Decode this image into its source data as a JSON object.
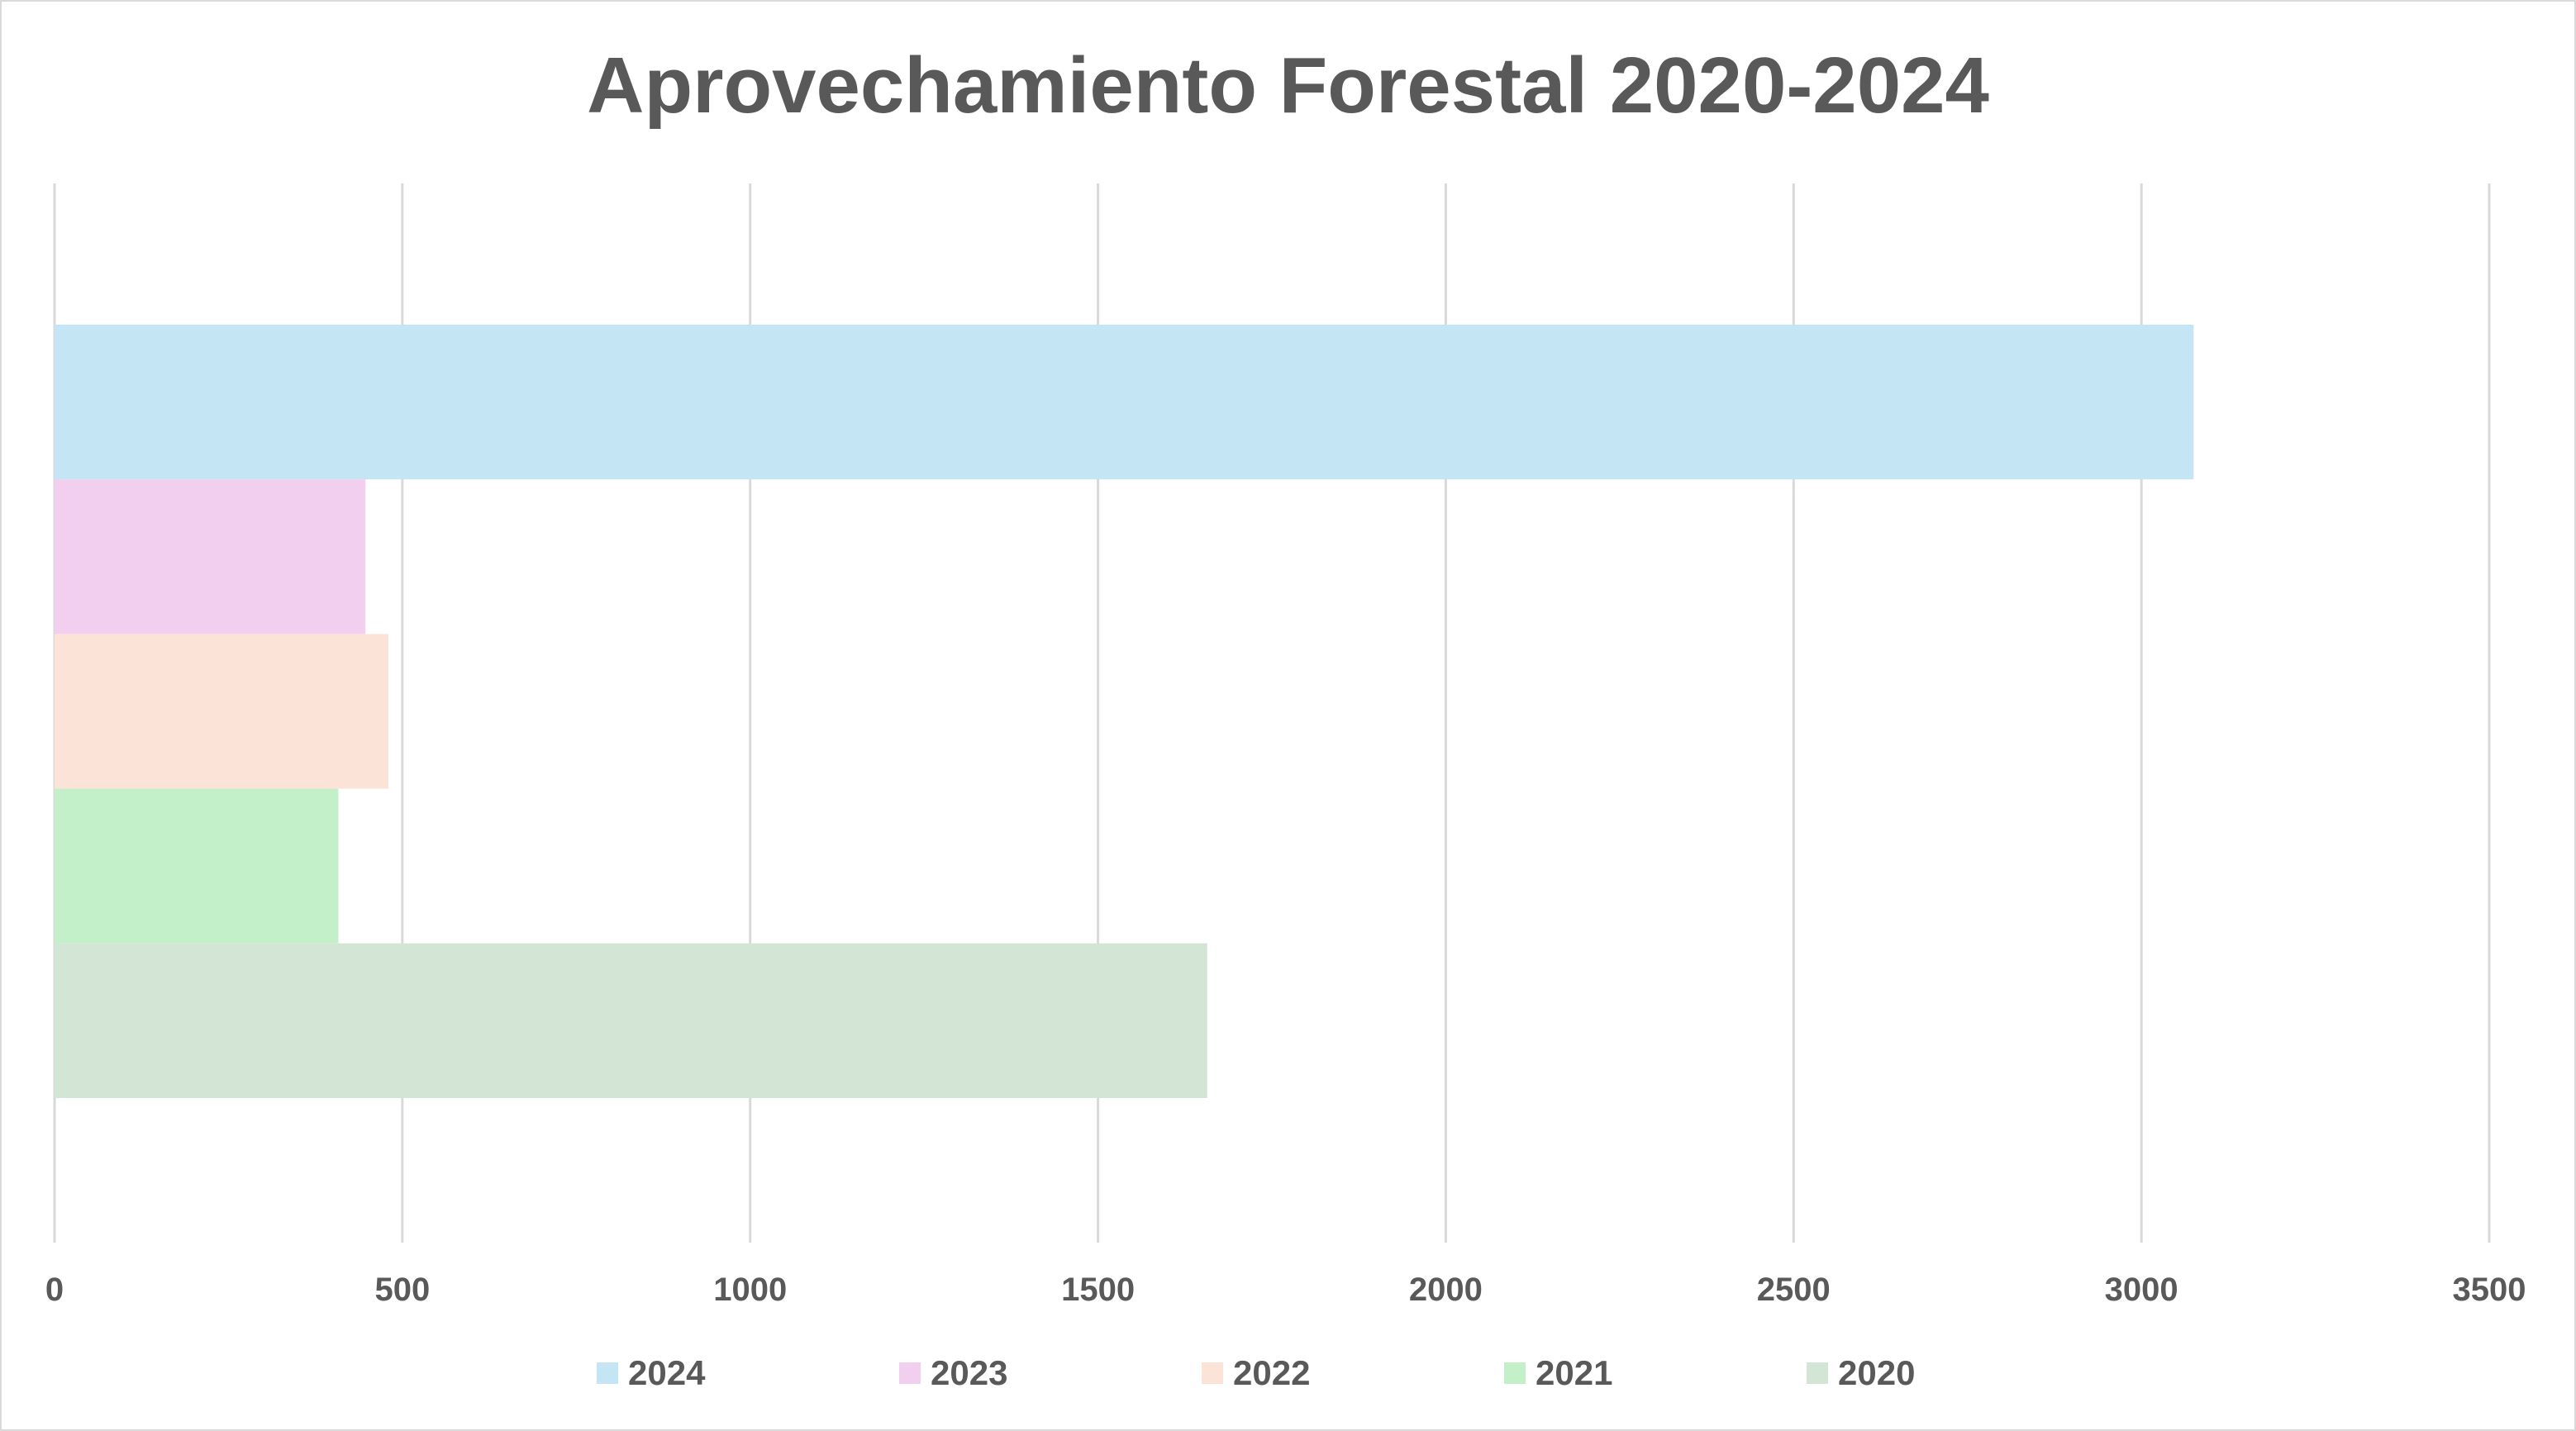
{
  "chart_data": {
    "type": "bar",
    "orientation": "horizontal",
    "title": "Aprovechamiento Forestal 2020-2024",
    "xlabel": "",
    "ylabel": "",
    "xlim": [
      0,
      3500
    ],
    "x_ticks": [
      "0",
      "500",
      "1000",
      "1500",
      "2000",
      "2500",
      "3000",
      "3500"
    ],
    "grid": "vertical",
    "legend_position": "bottom",
    "series": [
      {
        "name": "2024",
        "value": 3075,
        "color": "#c3e5f4"
      },
      {
        "name": "2023",
        "value": 447,
        "color": "#f2cfee"
      },
      {
        "name": "2022",
        "value": 480,
        "color": "#fce3d8"
      },
      {
        "name": "2021",
        "value": 408,
        "color": "#c4f0c9"
      },
      {
        "name": "2020",
        "value": 1657,
        "color": "#d3e6d5"
      }
    ]
  }
}
